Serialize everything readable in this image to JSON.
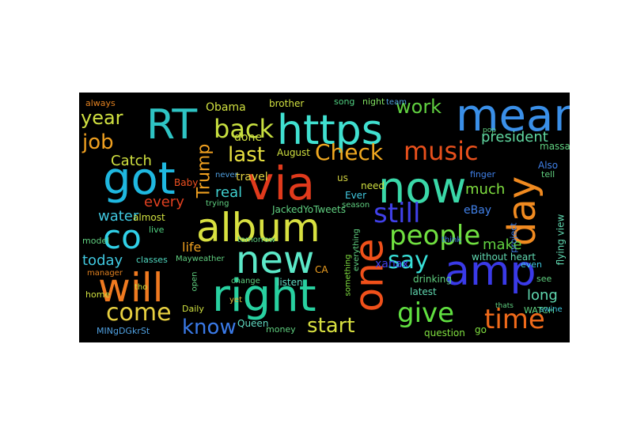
{
  "words": [
    {
      "t": "https",
      "c": "#40e0d0"
    },
    {
      "t": "mean",
      "c": "#3a8fe8"
    },
    {
      "t": "RT",
      "c": "#2ec4c4"
    },
    {
      "t": "got",
      "c": "#1fb8e0"
    },
    {
      "t": "via",
      "c": "#e03a1c"
    },
    {
      "t": "now",
      "c": "#3ad8a8"
    },
    {
      "t": "album",
      "c": "#d8e040"
    },
    {
      "t": "new",
      "c": "#5ce8c8"
    },
    {
      "t": "will",
      "c": "#f07a20"
    },
    {
      "t": "right",
      "c": "#28d0a0"
    },
    {
      "t": "one",
      "c": "#f0501a"
    },
    {
      "t": "amp",
      "c": "#3a3ae8"
    },
    {
      "t": "day",
      "c": "#f08a20"
    },
    {
      "t": "co",
      "c": "#30d0e8"
    },
    {
      "t": "back",
      "c": "#c8e040"
    },
    {
      "t": "music",
      "c": "#e8501c"
    },
    {
      "t": "Check",
      "c": "#f0a820"
    },
    {
      "t": "still",
      "c": "#4040e8"
    },
    {
      "t": "people",
      "c": "#70e040"
    },
    {
      "t": "give",
      "c": "#60e040"
    },
    {
      "t": "time",
      "c": "#f06a1a"
    },
    {
      "t": "come",
      "c": "#e8d040"
    },
    {
      "t": "say",
      "c": "#38e0d8"
    },
    {
      "t": "know",
      "c": "#3a7ae8"
    },
    {
      "t": "start",
      "c": "#d8e040"
    },
    {
      "t": "last",
      "c": "#e8e040"
    },
    {
      "t": "year",
      "c": "#d0e040"
    },
    {
      "t": "job",
      "c": "#f0a020"
    },
    {
      "t": "Trump",
      "c": "#f0a020"
    },
    {
      "t": "work",
      "c": "#60d040"
    },
    {
      "t": "president",
      "c": "#60d8a0"
    },
    {
      "t": "Catch",
      "c": "#d0e040"
    },
    {
      "t": "every",
      "c": "#e04020"
    },
    {
      "t": "real",
      "c": "#40d0d0"
    },
    {
      "t": "water",
      "c": "#40c8e0"
    },
    {
      "t": "life",
      "c": "#f0a020"
    },
    {
      "t": "today",
      "c": "#40c8e0"
    },
    {
      "t": "much",
      "c": "#80e040"
    },
    {
      "t": "make",
      "c": "#60d040"
    },
    {
      "t": "long",
      "c": "#60d8b0"
    },
    {
      "t": "eBay",
      "c": "#4080e8"
    },
    {
      "t": "xanax",
      "c": "#4040e8"
    },
    {
      "t": "done",
      "c": "#d0e040"
    },
    {
      "t": "travel",
      "c": "#e0d040"
    },
    {
      "t": "Obama",
      "c": "#d0e040"
    },
    {
      "t": "brother",
      "c": "#d0e040"
    },
    {
      "t": "always",
      "c": "#e08020"
    },
    {
      "t": "song",
      "c": "#50d080"
    },
    {
      "t": "night",
      "c": "#80e060"
    },
    {
      "t": "Baby",
      "c": "#f05020"
    },
    {
      "t": "August",
      "c": "#d0e040"
    },
    {
      "t": "Ever",
      "c": "#40c8e0"
    },
    {
      "t": "need",
      "c": "#d0e040"
    },
    {
      "t": "us",
      "c": "#d0d040"
    },
    {
      "t": "almost",
      "c": "#d0e040"
    },
    {
      "t": "model",
      "c": "#60d080"
    },
    {
      "t": "live",
      "c": "#50d080"
    },
    {
      "t": "JackedYoTweets",
      "c": "#60d080"
    },
    {
      "t": "classes",
      "c": "#50d8c0"
    },
    {
      "t": "Mayweather",
      "c": "#60d080"
    },
    {
      "t": "tomorrow",
      "c": "#60d080"
    },
    {
      "t": "without heart",
      "c": "#60d8b0"
    },
    {
      "t": "project",
      "c": "#4080e8"
    },
    {
      "t": "flying view",
      "c": "#60d8b0"
    },
    {
      "t": "Also",
      "c": "#4080e8"
    },
    {
      "t": "tell",
      "c": "#60d080"
    },
    {
      "t": "finger",
      "c": "#4080e8"
    },
    {
      "t": "massage",
      "c": "#60d080"
    },
    {
      "t": "even",
      "c": "#40c8e0"
    },
    {
      "t": "see",
      "c": "#60d080"
    },
    {
      "t": "WATCH",
      "c": "#60d080"
    },
    {
      "t": "go",
      "c": "#80e040"
    },
    {
      "t": "latest",
      "c": "#60d8b0"
    },
    {
      "t": "drinking",
      "c": "#60d080"
    },
    {
      "t": "question",
      "c": "#80e040"
    },
    {
      "t": "listen",
      "c": "#60d8c0"
    },
    {
      "t": "change",
      "c": "#60d080"
    },
    {
      "t": "tho",
      "c": "#d0e040"
    },
    {
      "t": "yet",
      "c": "#e0c040"
    },
    {
      "t": "money",
      "c": "#60d080"
    },
    {
      "t": "Queen",
      "c": "#60d8c0"
    },
    {
      "t": "Daily",
      "c": "#d0e040"
    },
    {
      "t": "home",
      "c": "#d0e040"
    },
    {
      "t": "manager",
      "c": "#e08020"
    },
    {
      "t": "MINgDGkrSt",
      "c": "#50a0e0"
    },
    {
      "t": "CA",
      "c": "#f0a020"
    },
    {
      "t": "something",
      "c": "#80e040"
    },
    {
      "t": "everything",
      "c": "#60d080"
    },
    {
      "t": "think",
      "c": "#4080e8"
    },
    {
      "t": "open",
      "c": "#60d080"
    },
    {
      "t": "never",
      "c": "#50a0e0"
    },
    {
      "t": "trying",
      "c": "#60d080"
    },
    {
      "t": "team",
      "c": "#50a0e0"
    },
    {
      "t": "season",
      "c": "#60d080"
    },
    {
      "t": "thats",
      "c": "#60d080"
    },
    {
      "t": "pop",
      "c": "#60d080"
    },
    {
      "t": "swine",
      "c": "#40c8e0"
    }
  ]
}
